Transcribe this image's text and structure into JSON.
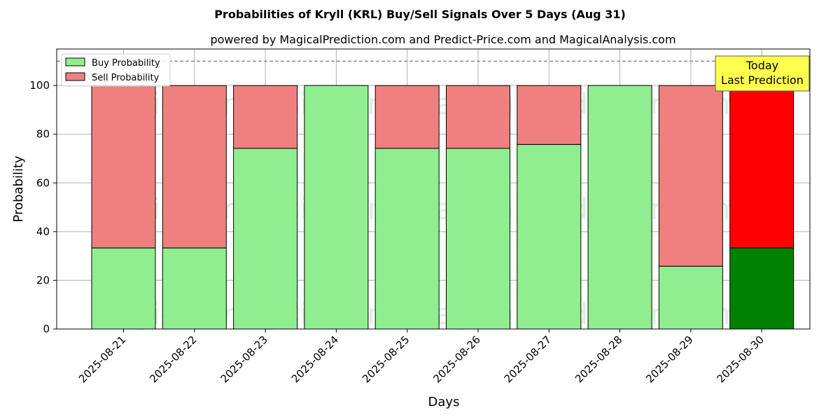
{
  "chart_data": {
    "type": "bar",
    "stacked": true,
    "title": "Probabilities of Kryll (KRL) Buy/Sell Signals Over 5 Days (Aug 31)",
    "subtitle": "powered by MagicalPrediction.com and Predict-Price.com and MagicalAnalysis.com",
    "xlabel": "Days",
    "ylabel": "Probability",
    "ylim": [
      0,
      115
    ],
    "yticks": [
      0,
      20,
      40,
      60,
      80,
      100
    ],
    "reference_line": 110,
    "grid": true,
    "legend_position": "top-left",
    "categories": [
      "2025-08-21",
      "2025-08-22",
      "2025-08-23",
      "2025-08-24",
      "2025-08-25",
      "2025-08-26",
      "2025-08-27",
      "2025-08-28",
      "2025-08-29",
      "2025-08-30"
    ],
    "series": [
      {
        "name": "Buy Probability",
        "color": "#90ee90",
        "last_color": "#008000",
        "values": [
          33.3,
          33.3,
          74.2,
          100,
          74.2,
          74.2,
          75.8,
          100,
          25.8,
          33.3
        ]
      },
      {
        "name": "Sell Probability",
        "color": "#f08080",
        "last_color": "#ff0000",
        "values": [
          66.7,
          66.7,
          25.8,
          0,
          25.8,
          25.8,
          24.2,
          0,
          74.2,
          66.7
        ]
      }
    ],
    "annotation": {
      "lines": [
        "Today",
        "Last Prediction"
      ],
      "background": "#ffff4d"
    },
    "watermarks": [
      "MagicalAnalysis.com",
      "MagicalPrediction.com"
    ]
  }
}
